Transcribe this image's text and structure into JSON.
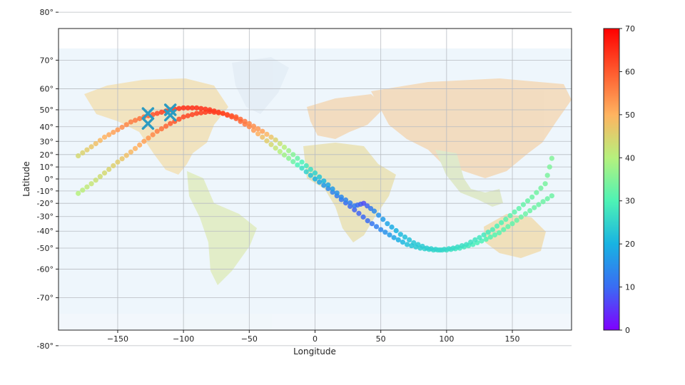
{
  "chart_data": {
    "type": "scatter",
    "xlabel": "Longitude",
    "ylabel": "Latitude",
    "xlim": [
      -195,
      195
    ],
    "x_ticks": [
      -150,
      -100,
      -50,
      0,
      50,
      100,
      150
    ],
    "x_tick_labels": [
      "−150",
      "−100",
      "−50",
      "0",
      "50",
      "100",
      "150"
    ],
    "y_ticks": [
      80,
      70,
      60,
      50,
      40,
      30,
      20,
      10,
      0,
      -10,
      -20,
      -30,
      -40,
      -50,
      -60,
      -70,
      -80
    ],
    "y_tick_labels": [
      "80°",
      "70°",
      "60°",
      "50°",
      "40°",
      "30°",
      "20°",
      "10°",
      "0°",
      "-10°",
      "-20°",
      "-30°",
      "-40°",
      "-50°",
      "-60°",
      "-70°",
      "-80°"
    ],
    "projection": "mercator",
    "grid": true,
    "background": "world political map (faded)",
    "colorbar": {
      "colormap": "rainbow",
      "min": 0,
      "max": 70,
      "ticks": [
        0,
        10,
        20,
        30,
        40,
        50,
        60,
        70
      ],
      "colors": [
        "#7f00ff",
        "#3a6cf3",
        "#18b3e2",
        "#4ef3b5",
        "#b6f17d",
        "#ffb360",
        "#ff5a2e",
        "#ff0000"
      ]
    },
    "track1": {
      "description": "upper track",
      "points": [
        [
          -180,
          19,
          44
        ],
        [
          -170,
          26,
          47
        ],
        [
          -160,
          33,
          50
        ],
        [
          -150,
          38,
          53
        ],
        [
          -140,
          43,
          56
        ],
        [
          -130,
          46,
          58
        ],
        [
          -120,
          48,
          62
        ],
        [
          -110,
          50,
          64
        ],
        [
          -100,
          51,
          65
        ],
        [
          -90,
          51,
          65
        ],
        [
          -80,
          50,
          64
        ],
        [
          -70,
          48,
          63
        ],
        [
          -60,
          45,
          60
        ],
        [
          -50,
          40,
          55
        ],
        [
          -40,
          33,
          48
        ],
        [
          -30,
          25,
          42
        ],
        [
          -20,
          17,
          36
        ],
        [
          -10,
          9,
          27
        ],
        [
          0,
          0,
          20
        ],
        [
          10,
          -8,
          14
        ],
        [
          20,
          -17,
          11
        ],
        [
          30,
          -25,
          9
        ],
        [
          40,
          -33,
          10
        ],
        [
          50,
          -39,
          14
        ],
        [
          60,
          -44,
          18
        ],
        [
          70,
          -48,
          22
        ],
        [
          80,
          -50,
          24
        ],
        [
          90,
          -51,
          26
        ],
        [
          100,
          -51,
          27
        ],
        [
          110,
          -50,
          28
        ],
        [
          120,
          -48,
          29
        ],
        [
          130,
          -45,
          30
        ],
        [
          140,
          -41,
          31
        ],
        [
          150,
          -35,
          32
        ],
        [
          160,
          -28,
          33
        ],
        [
          170,
          -21,
          33
        ],
        [
          180,
          -14,
          33
        ]
      ]
    },
    "track2": {
      "description": "lower track",
      "points": [
        [
          -180,
          -12,
          40
        ],
        [
          -170,
          -4,
          42
        ],
        [
          -160,
          5,
          44
        ],
        [
          -150,
          14,
          46
        ],
        [
          -140,
          22,
          49
        ],
        [
          -130,
          30,
          52
        ],
        [
          -120,
          37,
          56
        ],
        [
          -110,
          42,
          60
        ],
        [
          -100,
          46,
          62
        ],
        [
          -90,
          48,
          63
        ],
        [
          -80,
          49,
          64
        ],
        [
          -70,
          48,
          62
        ],
        [
          -60,
          46,
          60
        ],
        [
          -50,
          42,
          55
        ],
        [
          -40,
          37,
          52
        ],
        [
          -30,
          31,
          45
        ],
        [
          -20,
          23,
          38
        ],
        [
          -10,
          14,
          30
        ],
        [
          0,
          5,
          25
        ],
        [
          10,
          -5,
          18
        ],
        [
          20,
          -15,
          14
        ],
        [
          30,
          -22,
          12
        ],
        [
          37,
          -20,
          7
        ],
        [
          45,
          -26,
          14
        ],
        [
          55,
          -35,
          18
        ],
        [
          65,
          -42,
          21
        ],
        [
          75,
          -47,
          23
        ],
        [
          85,
          -50,
          24
        ],
        [
          95,
          -51,
          25
        ],
        [
          105,
          -50,
          26
        ],
        [
          115,
          -48,
          27
        ],
        [
          125,
          -44,
          28
        ],
        [
          135,
          -39,
          29
        ],
        [
          145,
          -32,
          31
        ],
        [
          155,
          -24,
          32
        ],
        [
          165,
          -15,
          33
        ],
        [
          175,
          -4,
          34
        ],
        [
          180,
          17,
          35
        ]
      ]
    },
    "markers": {
      "symbol": "X",
      "color": "#2c9bc1",
      "points": [
        [
          -127,
          48
        ],
        [
          -127,
          42
        ],
        [
          -110,
          50
        ],
        [
          -110,
          47
        ]
      ]
    }
  }
}
